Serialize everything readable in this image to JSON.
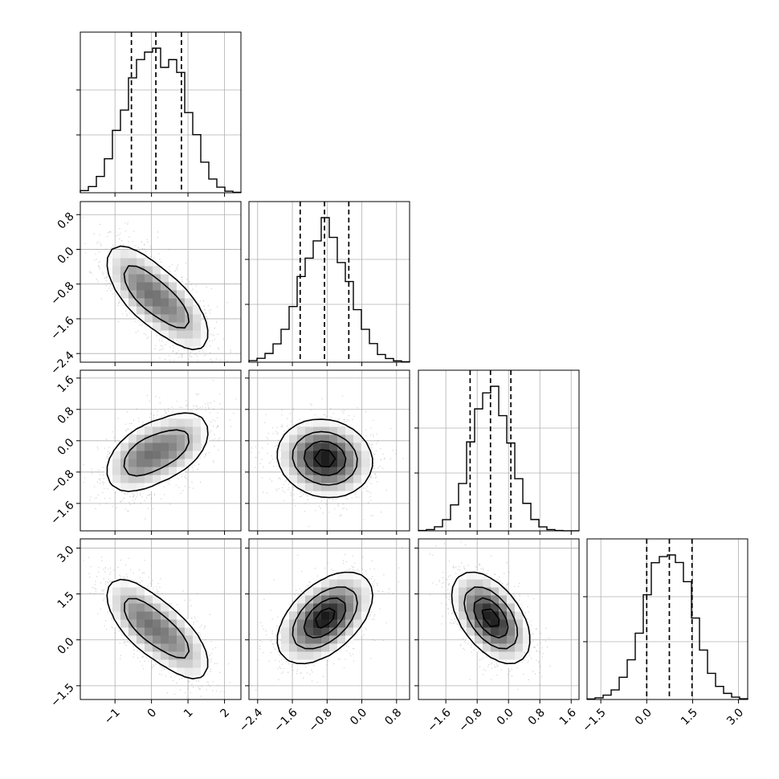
{
  "chart_data": {
    "type": "corner",
    "params": [
      {
        "range": [
          -1.95,
          2.45
        ],
        "ticks": [
          -1,
          0,
          1,
          2
        ],
        "tick_labels": [
          "−1",
          "0",
          "1",
          "2"
        ],
        "quantiles": [
          -0.55,
          0.12,
          0.82
        ],
        "mode": -0.3,
        "sd": 0.55,
        "mode2": 0.7,
        "w2": 0.45
      },
      {
        "range": [
          -2.6,
          1.1
        ],
        "ticks": [
          -2.4,
          -1.6,
          -0.8,
          0.0,
          0.8
        ],
        "tick_labels": [
          "−2.4",
          "−1.6",
          "−0.8",
          "0.0",
          "0.8"
        ],
        "quantiles": [
          -1.42,
          -0.86,
          -0.3
        ],
        "mode": -0.85,
        "sd": 0.55,
        "mode2": -0.85,
        "w2": 0.0
      },
      {
        "range": [
          -2.3,
          1.8
        ],
        "ticks": [
          -1.6,
          -0.8,
          0.0,
          0.8,
          1.6
        ],
        "tick_labels": [
          "−1.6",
          "−0.8",
          "0.0",
          "0.8",
          "1.6"
        ],
        "quantiles": [
          -0.98,
          -0.46,
          0.06
        ],
        "mode": -0.45,
        "sd": 0.5,
        "mode2": -0.45,
        "w2": 0.0
      },
      {
        "range": [
          -1.95,
          3.3
        ],
        "ticks": [
          -1.5,
          0.0,
          1.5,
          3.0
        ],
        "tick_labels": [
          "−1.5",
          "0.0",
          "1.5",
          "3.0"
        ],
        "quantiles": [
          0.0,
          0.74,
          1.48
        ],
        "mode": 0.72,
        "sd": 0.75,
        "mode2": 0.72,
        "w2": 0.0
      }
    ],
    "correlations": [
      [
        1,
        -0.6,
        0.4,
        -0.6
      ],
      [
        -0.6,
        1,
        -0.1,
        0.5
      ],
      [
        0.4,
        -0.1,
        1,
        -0.5
      ],
      [
        -0.6,
        0.5,
        -0.5,
        1
      ]
    ],
    "hist_bins": 20,
    "quantile_line_style": "dashed",
    "contour_levels": 4,
    "grid": true,
    "colors": {
      "line": "#000000",
      "grid": "#b0b0b0",
      "points": "#7f7f7f",
      "frame": "#000000"
    }
  }
}
